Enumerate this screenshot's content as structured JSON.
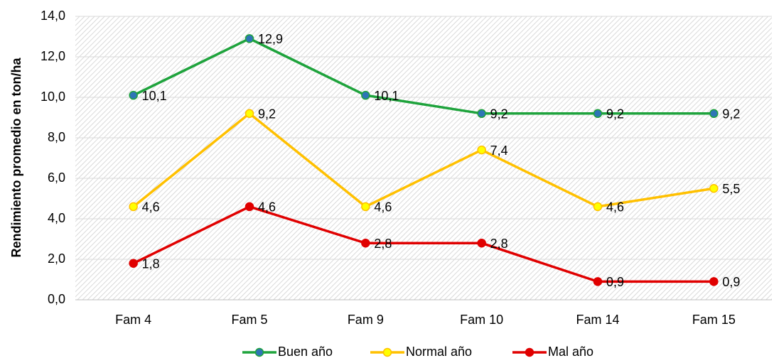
{
  "chart_data": {
    "type": "line",
    "y_axis_label": "Rendimiento promedio en ton/ha",
    "categories": [
      "Fam 4",
      "Fam 5",
      "Fam 9",
      "Fam 10",
      "Fam 14",
      "Fam 15"
    ],
    "series": [
      {
        "name": "Buen año",
        "color": "#1ea33c",
        "marker_color": "#2e75b6",
        "values": [
          10.1,
          12.9,
          10.1,
          9.2,
          9.2,
          9.2
        ],
        "value_labels": [
          "10,1",
          "12,9",
          "10,1",
          "9,2",
          "9,2",
          "9,2"
        ]
      },
      {
        "name": "Normal año",
        "color": "#ffc000",
        "marker_color": "#ffff00",
        "values": [
          4.6,
          9.2,
          4.6,
          7.4,
          4.6,
          5.5
        ],
        "value_labels": [
          "4,6",
          "9,2",
          "4,6",
          "7,4",
          "4,6",
          "5,5"
        ]
      },
      {
        "name": "Mal año",
        "color": "#e00000",
        "marker_color": "#e00000",
        "values": [
          1.8,
          4.6,
          2.8,
          2.8,
          0.9,
          0.9
        ],
        "value_labels": [
          "1,8",
          "4,6",
          "2,8",
          "2,8",
          "0,9",
          "0,9"
        ]
      }
    ],
    "ylim": [
      0,
      14
    ],
    "yticks": [
      {
        "value": 0,
        "label": "0,0"
      },
      {
        "value": 2,
        "label": "2,0"
      },
      {
        "value": 4,
        "label": "4,0"
      },
      {
        "value": 6,
        "label": "6,0"
      },
      {
        "value": 8,
        "label": "8,0"
      },
      {
        "value": 10,
        "label": "10,0"
      },
      {
        "value": 12,
        "label": "12,0"
      },
      {
        "value": 14,
        "label": "14,0"
      }
    ],
    "grid": true,
    "legend": "bottom"
  }
}
